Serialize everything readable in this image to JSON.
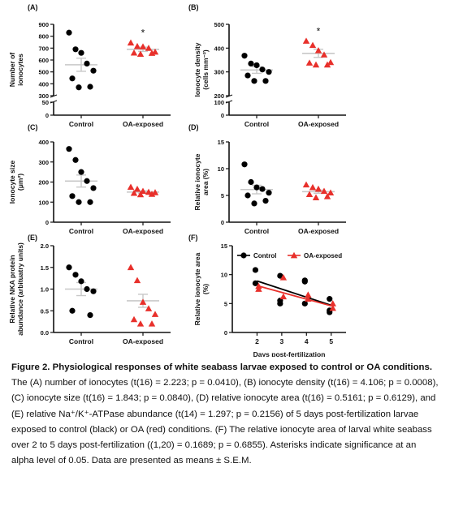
{
  "colors": {
    "control": "#000000",
    "oa": "#e8302b",
    "mean_line": "#c8c8c8"
  },
  "chart_data": [
    {
      "panel": "(A)",
      "type": "scatter",
      "ylabel_lines": [
        "Number of",
        "ionocytes"
      ],
      "categories": [
        "Control",
        "OA-exposed"
      ],
      "ylim": [
        0,
        900
      ],
      "axis_break": [
        50,
        300
      ],
      "yticks": [
        0,
        50,
        300,
        400,
        500,
        600,
        700,
        800,
        900
      ],
      "series": [
        {
          "values": [
            830,
            690,
            660,
            570,
            510,
            445,
            375,
            370
          ],
          "mean": 560,
          "sem": 55
        },
        {
          "values": [
            745,
            715,
            712,
            700,
            668,
            660,
            658,
            650
          ],
          "mean": 690,
          "sem": 18
        }
      ],
      "significance": "*"
    },
    {
      "panel": "(B)",
      "type": "scatter",
      "ylabel_lines": [
        "Ionocyte density",
        "(cells mm⁻²)"
      ],
      "categories": [
        "Control",
        "OA-exposed"
      ],
      "ylim": [
        0,
        500
      ],
      "axis_break": [
        100,
        200
      ],
      "yticks": [
        0,
        100,
        200,
        300,
        400,
        500
      ],
      "series": [
        {
          "values": [
            368,
            335,
            328,
            310,
            300,
            285,
            262,
            262
          ],
          "mean": 308,
          "sem": 14
        },
        {
          "values": [
            430,
            412,
            390,
            372,
            340,
            338,
            330,
            330
          ],
          "mean": 378,
          "sem": 17
        }
      ],
      "significance": "*"
    },
    {
      "panel": "(C)",
      "type": "scatter",
      "ylabel_lines": [
        "Ionocyte size",
        "(μm²)"
      ],
      "categories": [
        "Control",
        "OA-exposed"
      ],
      "ylim": [
        0,
        400
      ],
      "yticks": [
        0,
        100,
        200,
        300,
        400
      ],
      "series": [
        {
          "values": [
            365,
            310,
            250,
            205,
            170,
            130,
            100,
            100
          ],
          "mean": 205,
          "sem": 30
        },
        {
          "values": [
            175,
            165,
            155,
            150,
            148,
            145,
            140,
            138
          ],
          "mean": 150,
          "sem": 6
        }
      ]
    },
    {
      "panel": "(D)",
      "type": "scatter",
      "ylabel_lines": [
        "Relative ionocyte",
        "area (%)"
      ],
      "categories": [
        "Control",
        "OA-exposed"
      ],
      "ylim": [
        0,
        15
      ],
      "yticks": [
        0,
        5,
        10,
        15
      ],
      "series": [
        {
          "values": [
            10.8,
            7.5,
            6.5,
            6.2,
            5.5,
            5.0,
            4.0,
            3.5
          ],
          "mean": 6.1,
          "sem": 0.8
        },
        {
          "values": [
            7.0,
            6.5,
            6.2,
            5.8,
            5.5,
            5.2,
            4.8,
            4.6
          ],
          "mean": 5.7,
          "sem": 0.3
        }
      ]
    },
    {
      "panel": "(E)",
      "type": "scatter",
      "ylabel_lines": [
        "Relative NKA protein",
        "abundance (arbituatry units)"
      ],
      "categories": [
        "Control",
        "OA-exposed"
      ],
      "ylim": [
        0,
        2.0
      ],
      "yticks": [
        0.0,
        0.5,
        1.0,
        1.5,
        2.0
      ],
      "tick_decimals": 1,
      "series": [
        {
          "values": [
            1.5,
            1.33,
            1.18,
            1.0,
            0.95,
            0.5,
            0.4
          ],
          "mean": 1.0,
          "sem": 0.15
        },
        {
          "values": [
            1.5,
            1.2,
            0.7,
            0.55,
            0.42,
            0.3,
            0.2,
            0.2
          ],
          "mean": 0.73,
          "sem": 0.15
        }
      ]
    },
    {
      "panel": "(F)",
      "type": "line",
      "ylabel_lines": [
        "Relative ionocyte area",
        "(%)"
      ],
      "xlabel": "Days post-fertilization",
      "x": [
        2,
        3,
        4,
        5
      ],
      "xlim": [
        1,
        5.6
      ],
      "ylim": [
        0,
        15
      ],
      "yticks": [
        0,
        5,
        10,
        15
      ],
      "legend": [
        "Control",
        "OA-exposed"
      ],
      "series": [
        {
          "name": "Control",
          "points": [
            [
              2,
              10.8
            ],
            [
              2,
              8.5
            ],
            [
              3,
              9.8
            ],
            [
              3,
              5.0
            ],
            [
              3,
              5.5
            ],
            [
              4,
              9.0
            ],
            [
              4,
              8.8
            ],
            [
              4,
              5.0
            ],
            [
              5,
              5.8
            ],
            [
              5,
              3.5
            ],
            [
              5,
              3.8
            ]
          ],
          "fit": [
            [
              2,
              8.9
            ],
            [
              5,
              4.7
            ]
          ]
        },
        {
          "name": "OA-exposed",
          "points": [
            [
              2,
              8.0
            ],
            [
              2,
              7.5
            ],
            [
              3,
              9.5
            ],
            [
              3,
              6.2
            ],
            [
              4,
              6.5
            ],
            [
              4,
              5.8
            ],
            [
              5,
              5.0
            ],
            [
              5,
              4.2
            ]
          ],
          "fit": [
            [
              2,
              8.1
            ],
            [
              5,
              4.6
            ]
          ]
        }
      ]
    }
  ],
  "caption": {
    "bold": "Figure 2. Physiological responses of white seabass larvae exposed to control or OA conditions.",
    "text": " The (A) number of ionocytes (t(16) = 2.223; p = 0.0410), (B) ionocyte density (t(16) = 4.106; p = 0.0008), (C) ionocyte size (t(16) = 1.843; p = 0.0840), (D) relative ionocyte area (t(16) = 0.5161; p = 0.6129), and (E) relative Na⁺/K⁺-ATPase abundance (t(14) = 1.297; p = 0.2156) of 5 days post-fertilization larvae exposed to control (black) or OA (red) conditions. (F) The relative ionocyte area of larval white seabass over 2 to 5 days post-fertilization ((1,20) = 0.1689; p = 0.6855). Asterisks indicate significance at an alpha level of 0.05. Data are presented as means ± S.E.M."
  }
}
